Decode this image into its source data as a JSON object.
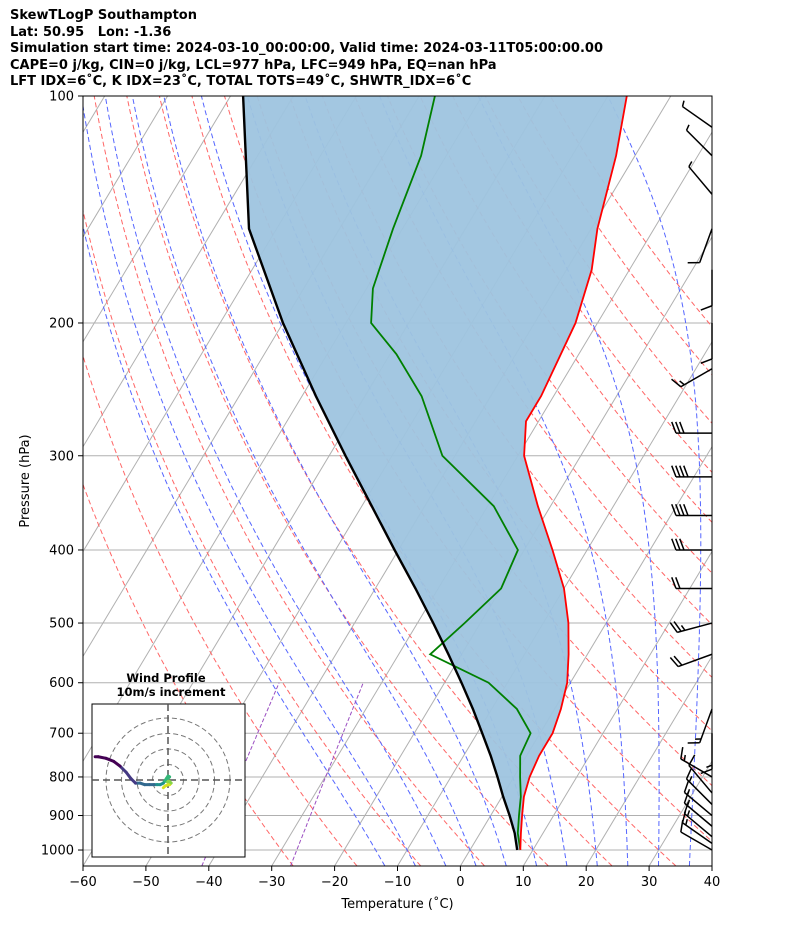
{
  "header": {
    "title": "SkewTLogP Southampton",
    "location": "Lat: 50.95   Lon: -1.36",
    "times": "Simulation start time: 2024-03-10_00:00:00, Valid time: 2024-03-11T05:00:00.00",
    "indices1": "CAPE=0 j/kg, CIN=0 j/kg, LCL=977 hPa, LFC=949 hPa, EQ=nan hPa",
    "indices2": "LFT IDX=6˚C, K IDX=23˚C, TOTAL TOTS=49˚C, SHWTR_IDX=6˚C"
  },
  "chart_data": {
    "type": "line",
    "xlabel": "Temperature (˚C)",
    "ylabel": "Pressure (hPa)",
    "xlim": [
      -60,
      40
    ],
    "ylim": [
      1050,
      100
    ],
    "yscale": "log",
    "skew": true,
    "grid": true,
    "x_ticks": [
      -60,
      -50,
      -40,
      -30,
      -20,
      -10,
      0,
      10,
      20,
      30,
      40
    ],
    "y_ticks": [
      1000,
      900,
      800,
      700,
      600,
      500,
      400,
      300,
      200,
      100
    ],
    "colors": {
      "temperature": "#ff0000",
      "dewpoint": "#008000",
      "parcel": "#000000",
      "shading": "#9ec4df",
      "dry_adiabats": "#ff6666",
      "moist_adiabats": "#5566ff",
      "mixing_ratio": "#9b4fc2",
      "isotherms": "#b0b0b0"
    },
    "series": [
      {
        "key": "temperature",
        "points": [
          [
            1000,
            8.0
          ],
          [
            950,
            6.5
          ],
          [
            900,
            5.0
          ],
          [
            850,
            3.5
          ],
          [
            800,
            2.5
          ],
          [
            750,
            2.0
          ],
          [
            700,
            2.0
          ],
          [
            650,
            1.0
          ],
          [
            600,
            -0.5
          ],
          [
            550,
            -3.0
          ],
          [
            500,
            -6.0
          ],
          [
            450,
            -10.0
          ],
          [
            400,
            -15.5
          ],
          [
            350,
            -22.0
          ],
          [
            300,
            -29.0
          ],
          [
            270,
            -32.0
          ],
          [
            250,
            -32.0
          ],
          [
            200,
            -33.5
          ],
          [
            170,
            -36.0
          ],
          [
            150,
            -39.0
          ],
          [
            120,
            -43.0
          ],
          [
            100,
            -47.0
          ]
        ]
      },
      {
        "key": "dewpoint",
        "points": [
          [
            1000,
            8.0
          ],
          [
            950,
            6.0
          ],
          [
            900,
            4.5
          ],
          [
            850,
            3.0
          ],
          [
            800,
            1.0
          ],
          [
            750,
            -1.0
          ],
          [
            700,
            -1.5
          ],
          [
            650,
            -6.0
          ],
          [
            600,
            -13.0
          ],
          [
            550,
            -25.0
          ],
          [
            500,
            -22.5
          ],
          [
            450,
            -20.0
          ],
          [
            400,
            -21.0
          ],
          [
            350,
            -29.0
          ],
          [
            300,
            -42.0
          ],
          [
            250,
            -51.0
          ],
          [
            220,
            -59.0
          ],
          [
            200,
            -66.0
          ],
          [
            180,
            -69.0
          ],
          [
            150,
            -71.5
          ],
          [
            120,
            -74.0
          ],
          [
            100,
            -77.5
          ]
        ]
      },
      {
        "key": "parcel",
        "points": [
          [
            1000,
            7.5
          ],
          [
            950,
            5.5
          ],
          [
            900,
            3.0
          ],
          [
            850,
            0.2
          ],
          [
            800,
            -2.6
          ],
          [
            750,
            -5.7
          ],
          [
            700,
            -9.2
          ],
          [
            650,
            -13.0
          ],
          [
            600,
            -17.3
          ],
          [
            550,
            -22.1
          ],
          [
            500,
            -27.5
          ],
          [
            450,
            -33.6
          ],
          [
            400,
            -40.6
          ],
          [
            350,
            -48.4
          ],
          [
            300,
            -57.4
          ],
          [
            250,
            -67.8
          ],
          [
            200,
            -80.0
          ],
          [
            150,
            -94.4
          ],
          [
            100,
            -108.0
          ]
        ]
      }
    ],
    "wind_barbs": [
      {
        "p": 1000,
        "speed": 10,
        "dir": 300
      },
      {
        "p": 980,
        "speed": 15,
        "dir": 305
      },
      {
        "p": 960,
        "speed": 15,
        "dir": 310
      },
      {
        "p": 930,
        "speed": 15,
        "dir": 310
      },
      {
        "p": 900,
        "speed": 15,
        "dir": 310
      },
      {
        "p": 870,
        "speed": 15,
        "dir": 315
      },
      {
        "p": 840,
        "speed": 10,
        "dir": 320
      },
      {
        "p": 800,
        "speed": 15,
        "dir": 300
      },
      {
        "p": 700,
        "speed": 15,
        "dir": 180
      },
      {
        "p": 650,
        "speed": 15,
        "dir": 200
      },
      {
        "p": 550,
        "speed": 20,
        "dir": 250
      },
      {
        "p": 500,
        "speed": 25,
        "dir": 255
      },
      {
        "p": 450,
        "speed": 20,
        "dir": 270
      },
      {
        "p": 400,
        "speed": 30,
        "dir": 270
      },
      {
        "p": 360,
        "speed": 40,
        "dir": 270
      },
      {
        "p": 320,
        "speed": 40,
        "dir": 270
      },
      {
        "p": 280,
        "speed": 30,
        "dir": 270
      },
      {
        "p": 230,
        "speed": 15,
        "dir": 240
      },
      {
        "p": 200,
        "speed": 10,
        "dir": 180
      },
      {
        "p": 170,
        "speed": 10,
        "dir": 180
      },
      {
        "p": 150,
        "speed": 10,
        "dir": 200
      },
      {
        "p": 135,
        "speed": 5,
        "dir": 320
      },
      {
        "p": 120,
        "speed": 5,
        "dir": 315
      },
      {
        "p": 110,
        "speed": 5,
        "dir": 305
      }
    ],
    "hodograph": {
      "title": "Wind Profile",
      "subtitle": "10m/s increment",
      "rings_ms": [
        10,
        20,
        30,
        40
      ],
      "points": [
        [
          -3,
          -5
        ],
        [
          -2,
          -4
        ],
        [
          0,
          -3
        ],
        [
          1,
          -3
        ],
        [
          2,
          -2
        ],
        [
          1,
          -1
        ],
        [
          -1,
          -1
        ],
        [
          0,
          1
        ],
        [
          1,
          2
        ],
        [
          0,
          2.5
        ],
        [
          -1,
          1
        ],
        [
          -3,
          -2
        ],
        [
          -5,
          -3
        ],
        [
          -7,
          -3
        ],
        [
          -9,
          -3
        ],
        [
          -12,
          -3
        ],
        [
          -15,
          -3
        ],
        [
          -18,
          -2
        ],
        [
          -21,
          -2
        ],
        [
          -24,
          1
        ],
        [
          -27,
          5
        ],
        [
          -31,
          9
        ],
        [
          -35,
          12
        ],
        [
          -40,
          14
        ],
        [
          -45,
          15
        ],
        [
          -47,
          15
        ]
      ],
      "colormap": [
        "#d6e21f",
        "#86d549",
        "#35b779",
        "#20928c",
        "#31688e",
        "#443983",
        "#440154"
      ]
    }
  }
}
